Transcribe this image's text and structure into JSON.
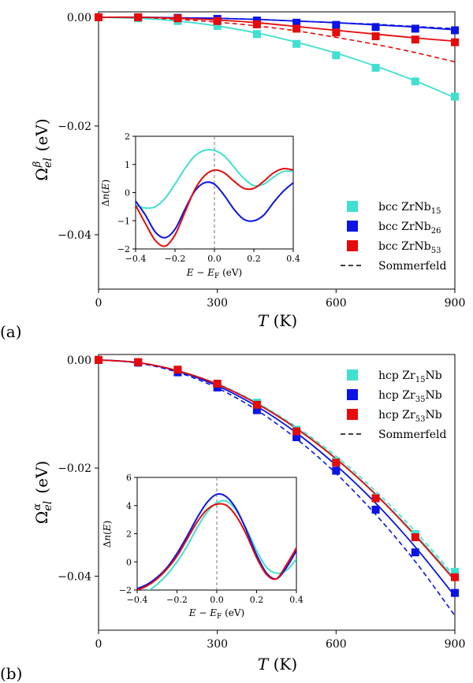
{
  "chart_data": [
    {
      "panel": "(a)",
      "type": "line",
      "xlabel": "T (K)",
      "ylabel": "Ω_el^β (eV)",
      "xlim": [
        0,
        900
      ],
      "ylim": [
        -0.05,
        0.001
      ],
      "xticks": [
        "0",
        "300",
        "600",
        "900"
      ],
      "yticks": [
        "0.00",
        "−0.02",
        "−0.04"
      ],
      "legend_position": "bottom-right",
      "series": [
        {
          "name": "bcc ZrNb15",
          "label_main": "bcc ZrNb",
          "label_sub": "15",
          "color": "#40e0d0",
          "x": [
            0,
            100,
            200,
            300,
            400,
            500,
            600,
            700,
            800,
            900
          ],
          "points": [
            0,
            -0.0002,
            -0.0007,
            -0.0016,
            -0.0031,
            -0.0049,
            -0.007,
            -0.0093,
            -0.0118,
            -0.0146
          ],
          "fit": [
            0,
            -0.0002,
            -0.0007,
            -0.0016,
            -0.0029,
            -0.0046,
            -0.0066,
            -0.009,
            -0.0117,
            -0.0148
          ],
          "sommerfeld": [
            0,
            -0.0002,
            -0.0007,
            -0.0016,
            -0.0029,
            -0.0046,
            -0.0066,
            -0.009,
            -0.0117,
            -0.0148
          ]
        },
        {
          "name": "bcc ZrNb26",
          "label_main": "bcc ZrNb",
          "label_sub": "26",
          "color": "#0a14e6",
          "x": [
            0,
            100,
            200,
            300,
            400,
            500,
            600,
            700,
            800,
            900
          ],
          "points": [
            0,
            0,
            -0.0001,
            -0.0003,
            -0.0006,
            -0.001,
            -0.0014,
            -0.0018,
            -0.0021,
            -0.0024
          ],
          "fit": [
            0,
            0,
            -0.0001,
            -0.0002,
            -0.0004,
            -0.0007,
            -0.001,
            -0.0014,
            -0.0018,
            -0.0023
          ],
          "sommerfeld": [
            0,
            0,
            -0.0001,
            -0.0002,
            -0.0004,
            -0.0007,
            -0.001,
            -0.0013,
            -0.0017,
            -0.0021
          ]
        },
        {
          "name": "bcc ZrNb53",
          "label_main": "bcc ZrNb",
          "label_sub": "53",
          "color": "#e60a0a",
          "x": [
            0,
            100,
            200,
            300,
            400,
            500,
            600,
            700,
            800,
            900
          ],
          "points": [
            0,
            0,
            -0.0002,
            -0.0007,
            -0.0013,
            -0.0021,
            -0.0028,
            -0.0035,
            -0.0041,
            -0.0046
          ],
          "fit": [
            0,
            0,
            -0.0002,
            -0.0005,
            -0.001,
            -0.0017,
            -0.0024,
            -0.0031,
            -0.0038,
            -0.0044
          ],
          "sommerfeld": [
            0,
            -0.0001,
            -0.0004,
            -0.0009,
            -0.0016,
            -0.0025,
            -0.0037,
            -0.005,
            -0.0065,
            -0.0082
          ]
        }
      ],
      "sommerfeld_label": "Sommerfeld",
      "inset": {
        "xlabel": "E − E_F (eV)",
        "ylabel": "Δn(E)",
        "xlim": [
          -0.4,
          0.4
        ],
        "ylim": [
          -2,
          2
        ],
        "xticks": [
          "−0.4",
          "−0.2",
          "0.0",
          "0.2",
          "0.4"
        ],
        "yticks": [
          "2",
          "1",
          "0",
          "−1",
          "−2"
        ],
        "x": [
          -0.4,
          -0.35,
          -0.3,
          -0.25,
          -0.2,
          -0.15,
          -0.1,
          -0.05,
          0.0,
          0.05,
          0.1,
          0.15,
          0.2,
          0.25,
          0.3,
          0.35,
          0.4
        ],
        "series": [
          {
            "color": "#40e0d0",
            "y": [
              -0.45,
              -0.55,
              -0.5,
              -0.2,
              0.3,
              0.85,
              1.3,
              1.5,
              1.5,
              1.3,
              0.9,
              0.5,
              0.25,
              0.3,
              0.55,
              0.75,
              0.75
            ]
          },
          {
            "color": "#0a14e6",
            "y": [
              -0.3,
              -0.8,
              -1.4,
              -1.6,
              -1.3,
              -0.6,
              0.05,
              0.35,
              0.3,
              -0.1,
              -0.6,
              -0.95,
              -1.0,
              -0.8,
              -0.35,
              0.05,
              0.35
            ]
          },
          {
            "color": "#e60a0a",
            "y": [
              -0.45,
              -1.1,
              -1.7,
              -1.9,
              -1.5,
              -0.7,
              0.1,
              0.6,
              0.8,
              0.7,
              0.4,
              0.15,
              0.15,
              0.4,
              0.7,
              0.85,
              0.8
            ]
          }
        ]
      }
    },
    {
      "panel": "(b)",
      "type": "line",
      "xlabel": "T (K)",
      "ylabel": "Ω_el^α (eV)",
      "xlim": [
        0,
        900
      ],
      "ylim": [
        -0.05,
        0.001
      ],
      "xticks": [
        "0",
        "300",
        "600",
        "900"
      ],
      "yticks": [
        "0.00",
        "−0.02",
        "−0.04"
      ],
      "legend_position": "top-right",
      "series": [
        {
          "name": "hcp Zr15Nb",
          "label_main": "hcp Zr",
          "label_sub": "15",
          "label_tail": "Nb",
          "color": "#40e0d0",
          "x": [
            0,
            100,
            200,
            300,
            400,
            500,
            600,
            700,
            800,
            900
          ],
          "points": [
            0,
            -0.0005,
            -0.0019,
            -0.0044,
            -0.0079,
            -0.0129,
            -0.0188,
            -0.0255,
            -0.0322,
            -0.0392
          ],
          "fit": [
            0,
            -0.0005,
            -0.002,
            -0.0045,
            -0.008,
            -0.0126,
            -0.0182,
            -0.0248,
            -0.0323,
            -0.0405
          ],
          "sommerfeld": [
            0,
            -0.0005,
            -0.002,
            -0.0044,
            -0.0079,
            -0.0124,
            -0.0178,
            -0.0243,
            -0.0317,
            -0.0401
          ]
        },
        {
          "name": "hcp Zr35Nb",
          "label_main": "hcp Zr",
          "label_sub": "35",
          "label_tail": "Nb",
          "color": "#0a14e6",
          "x": [
            0,
            100,
            200,
            300,
            400,
            500,
            600,
            700,
            800,
            900
          ],
          "points": [
            0,
            -0.0005,
            -0.0023,
            -0.0051,
            -0.0093,
            -0.0143,
            -0.0205,
            -0.0277,
            -0.0356,
            -0.0431
          ],
          "fit": [
            0,
            -0.0005,
            -0.0021,
            -0.0048,
            -0.0086,
            -0.0135,
            -0.0195,
            -0.0265,
            -0.0346,
            -0.0437
          ],
          "sommerfeld": [
            0,
            -0.0006,
            -0.0023,
            -0.0052,
            -0.0093,
            -0.0146,
            -0.021,
            -0.0286,
            -0.0373,
            -0.0473
          ]
        },
        {
          "name": "hcp Zr53Nb",
          "label_main": "hcp Zr",
          "label_sub": "53",
          "label_tail": "Nb",
          "color": "#e60a0a",
          "x": [
            0,
            100,
            200,
            300,
            400,
            500,
            600,
            700,
            800,
            900
          ],
          "points": [
            0,
            -0.0004,
            -0.0018,
            -0.0044,
            -0.0083,
            -0.0132,
            -0.019,
            -0.0256,
            -0.0328,
            -0.0402
          ],
          "fit": [
            0,
            -0.0005,
            -0.002,
            -0.0045,
            -0.0081,
            -0.0127,
            -0.0183,
            -0.0249,
            -0.0325,
            -0.0408
          ],
          "sommerfeld": [
            0,
            -0.0005,
            -0.002,
            -0.0045,
            -0.0081,
            -0.0127,
            -0.0183,
            -0.0249,
            -0.0325,
            -0.0408
          ]
        }
      ],
      "sommerfeld_label": "Sommerfeld",
      "inset": {
        "xlabel": "E − E_F (eV)",
        "ylabel": "Δn(E)",
        "xlim": [
          -0.4,
          0.4
        ],
        "ylim": [
          -2,
          6
        ],
        "xticks": [
          "−0.4",
          "−0.2",
          "0.0",
          "0.2",
          "0.4"
        ],
        "yticks": [
          "6",
          "4",
          "2",
          "0",
          "−2"
        ],
        "x": [
          -0.4,
          -0.35,
          -0.3,
          -0.25,
          -0.2,
          -0.15,
          -0.1,
          -0.05,
          0.0,
          0.05,
          0.1,
          0.15,
          0.2,
          0.25,
          0.3,
          0.35,
          0.4
        ],
        "series": [
          {
            "color": "#40e0d0",
            "y": [
              -2.5,
              -2.1,
              -1.6,
              -0.9,
              0.0,
              1.1,
              2.4,
              3.5,
              4.2,
              4.3,
              3.6,
              2.3,
              0.8,
              -0.4,
              -0.8,
              -0.6,
              0.2
            ]
          },
          {
            "color": "#0a14e6",
            "y": [
              -1.9,
              -1.6,
              -1.1,
              -0.4,
              0.6,
              1.8,
              3.1,
              4.2,
              4.8,
              4.6,
              3.7,
              2.2,
              0.5,
              -0.8,
              -1.2,
              -0.4,
              0.8
            ]
          },
          {
            "color": "#e60a0a",
            "y": [
              -2.0,
              -1.7,
              -1.2,
              -0.5,
              0.4,
              1.6,
              2.8,
              3.7,
              4.1,
              4.0,
              3.2,
              1.9,
              0.3,
              -0.9,
              -1.2,
              -0.2,
              1.0
            ]
          }
        ]
      }
    }
  ]
}
